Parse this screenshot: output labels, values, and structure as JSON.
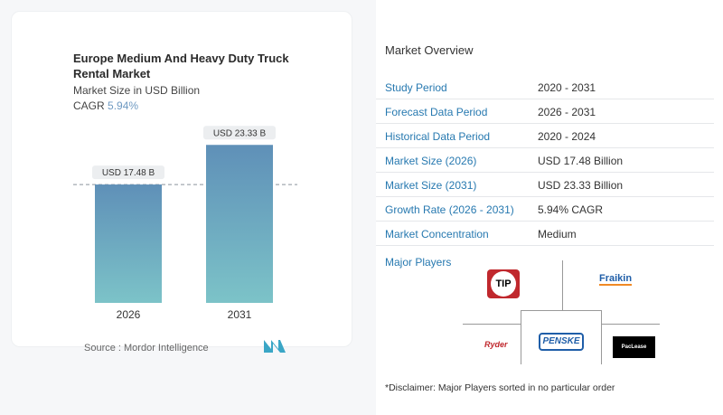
{
  "chart_data": {
    "type": "bar",
    "title": "Europe Medium And Heavy Duty Truck Rental Market",
    "subtitle": "Market Size in USD Billion",
    "cagr_label": "CAGR",
    "cagr_value": "5.94%",
    "categories": [
      "2026",
      "2031"
    ],
    "values": [
      17.48,
      23.33
    ],
    "data_labels": [
      "USD 17.48 B",
      "USD 23.33 B"
    ],
    "ylim": [
      0,
      25
    ],
    "grid": false,
    "source": "Source :  Mordor Intelligence"
  },
  "overview": {
    "title": "Market Overview",
    "rows": [
      {
        "label": "Study Period",
        "value": "2020 - 2031"
      },
      {
        "label": "Forecast Data Period",
        "value": "2026 - 2031"
      },
      {
        "label": "Historical Data Period",
        "value": "2020 - 2024"
      },
      {
        "label": "Market Size (2026)",
        "value": "USD 17.48 Billion"
      },
      {
        "label": "Market Size (2031)",
        "value": "USD 23.33 Billion"
      },
      {
        "label": "Growth Rate (2026 - 2031)",
        "value": "5.94% CAGR"
      },
      {
        "label": "Market Concentration",
        "value": "Medium"
      }
    ]
  },
  "players": {
    "title": "Major Players",
    "logos": [
      "TIP",
      "Fraikin",
      "Ryder",
      "PENSKE",
      "PacLease"
    ],
    "disclaimer": "*Disclaimer: Major Players sorted in no particular order"
  },
  "colors": {
    "bar_top": "#5f90b8",
    "bar_bottom": "#7cc3c8",
    "accent": "#2779b0"
  }
}
